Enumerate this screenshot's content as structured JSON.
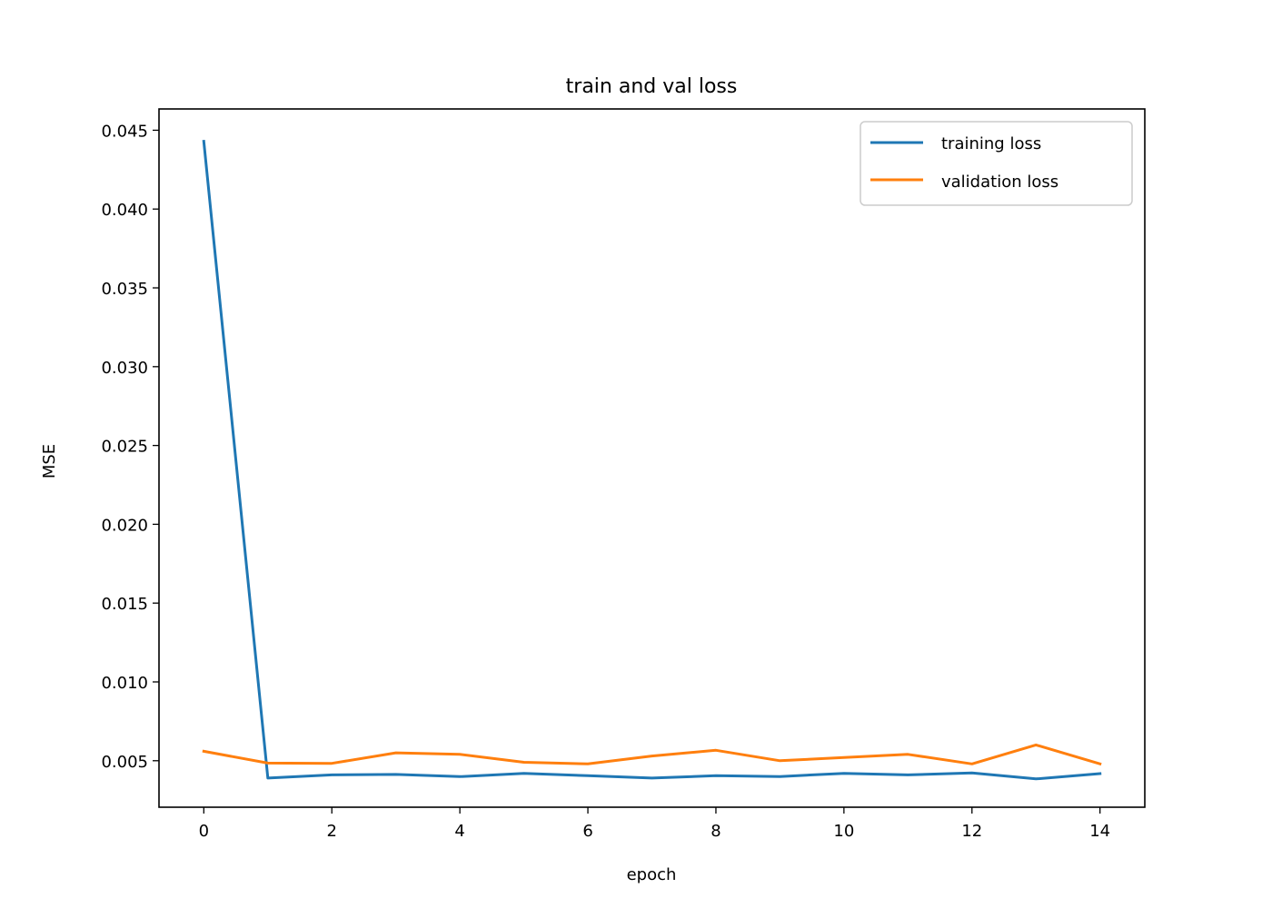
{
  "chart_data": {
    "type": "line",
    "title": "train and val loss",
    "xlabel": "epoch",
    "ylabel": "MSE",
    "x": [
      0,
      1,
      2,
      3,
      4,
      5,
      6,
      7,
      8,
      9,
      10,
      11,
      12,
      13,
      14
    ],
    "series": [
      {
        "name": "training loss",
        "color": "#1f77b4",
        "values": [
          0.0443,
          0.0039,
          0.0041,
          0.00413,
          0.00399,
          0.0042,
          0.00405,
          0.0039,
          0.00405,
          0.004,
          0.0042,
          0.0041,
          0.00423,
          0.00385,
          0.00418
        ]
      },
      {
        "name": "validation loss",
        "color": "#ff7f0e",
        "values": [
          0.0056,
          0.00485,
          0.00483,
          0.0055,
          0.0054,
          0.0049,
          0.0048,
          0.0053,
          0.00566,
          0.005,
          0.0052,
          0.0054,
          0.0048,
          0.006,
          0.0048
        ]
      }
    ],
    "xlim": [
      -0.7,
      14.7
    ],
    "ylim": [
      0.00205,
      0.04635
    ],
    "xticks": [
      "0",
      "2",
      "4",
      "6",
      "8",
      "10",
      "12",
      "14"
    ],
    "xtick_values": [
      0,
      2,
      4,
      6,
      8,
      10,
      12,
      14
    ],
    "yticks": [
      "0.005",
      "0.010",
      "0.015",
      "0.020",
      "0.025",
      "0.030",
      "0.035",
      "0.040",
      "0.045"
    ],
    "ytick_values": [
      0.005,
      0.01,
      0.015,
      0.02,
      0.025,
      0.03,
      0.035,
      0.04,
      0.045
    ],
    "grid": false,
    "legend_position": "top-right"
  }
}
